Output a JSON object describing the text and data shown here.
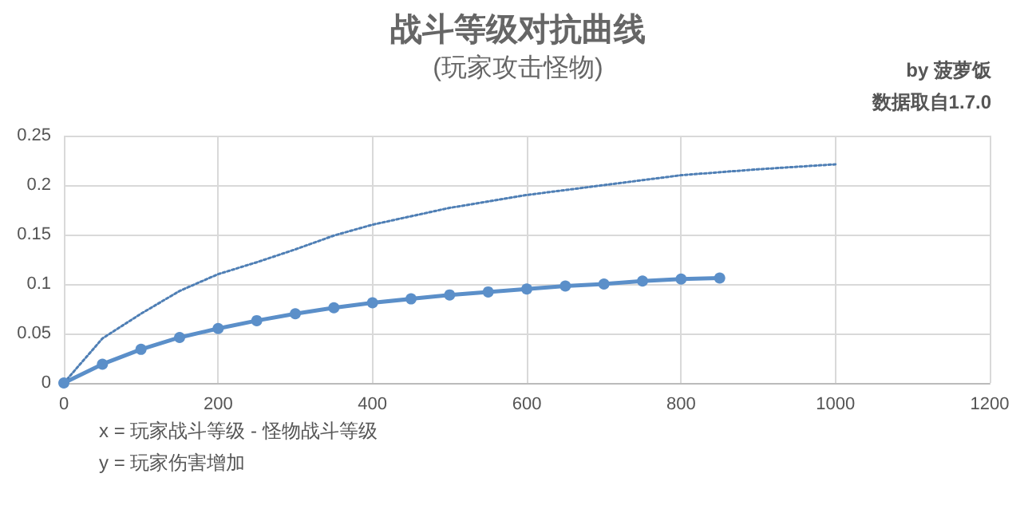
{
  "chart_data": {
    "type": "line",
    "title": "战斗等级对抗曲线",
    "subtitle": "(玩家攻击怪物)",
    "annotations": [
      "by 菠萝饭",
      "数据取自1.7.0",
      "x = 玩家战斗等级 - 怪物战斗等级",
      "y = 玩家伤害增加"
    ],
    "x": [
      0,
      50,
      100,
      150,
      200,
      250,
      300,
      350,
      400,
      450,
      500,
      550,
      600,
      650,
      700,
      750,
      800,
      850
    ],
    "series": [
      {
        "color": "#5b8fc9",
        "marker": "circle",
        "line_style": "solid",
        "values": [
          0,
          0.019,
          0.034,
          0.046,
          0.055,
          0.063,
          0.07,
          0.076,
          0.081,
          0.085,
          0.089,
          0.092,
          0.095,
          0.098,
          0.1,
          0.103,
          0.105,
          0.106
        ]
      },
      {
        "color": "#4f7fb5",
        "marker": "none",
        "line_style": "dotted",
        "x": [
          0,
          50,
          100,
          150,
          200,
          250,
          300,
          350,
          400,
          500,
          600,
          700,
          800,
          900,
          1000
        ],
        "values": [
          0,
          0.045,
          0.07,
          0.093,
          0.11,
          0.122,
          0.135,
          0.149,
          0.16,
          0.177,
          0.19,
          0.2,
          0.21,
          0.216,
          0.221
        ]
      }
    ],
    "xlim": [
      0,
      1200
    ],
    "xticks": [
      0,
      200,
      400,
      600,
      800,
      1000,
      1200
    ],
    "ylim": [
      0,
      0.25
    ],
    "yticks": [
      0,
      0.05,
      0.1,
      0.15,
      0.2,
      0.25
    ],
    "grid": true
  }
}
